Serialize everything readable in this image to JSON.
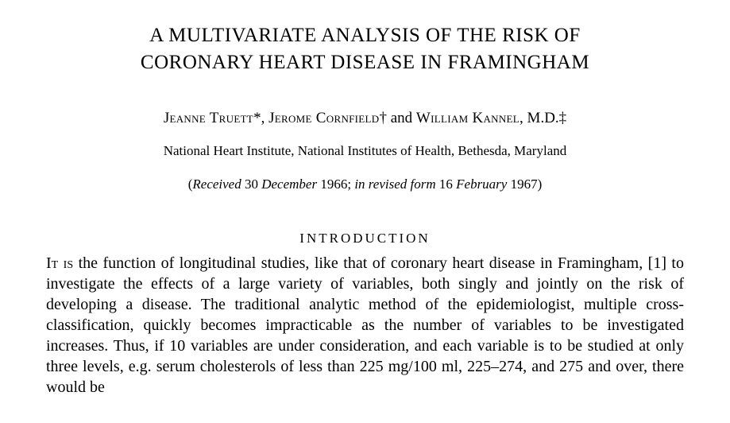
{
  "title_line1": "A MULTIVARIATE ANALYSIS OF THE RISK OF",
  "title_line2": "CORONARY HEART DISEASE IN FRAMINGHAM",
  "authors": {
    "a1_name": "Jeanne Truett",
    "a1_mark": "*",
    "sep1": ", ",
    "a2_name": "Jerome Cornfield",
    "a2_mark": "†",
    "sep2": " and ",
    "a3_name": "William Kannel",
    "a3_suffix": ", M.D.",
    "a3_mark": "‡"
  },
  "affiliation": "National Heart Institute, National Institutes of Health, Bethesda, Maryland",
  "dates": {
    "open": "(",
    "received_label": "Received",
    "received_date": " 30 ",
    "received_month": "December",
    "received_year": " 1966; ",
    "revised_label": "in revised form",
    "revised_date": " 16 ",
    "revised_month": "February",
    "revised_year": " 1967",
    "close": ")"
  },
  "section_heading": "INTRODUCTION",
  "body": {
    "lead": "It is",
    "text": " the function of longitudinal studies, like that of coronary heart disease in Framingham, [1] to investigate the effects of a large variety of variables, both singly and jointly on the risk of developing a disease. The traditional analytic method of the epidemiologist, multiple cross-classification, quickly becomes impracticable as the number of variables to be investigated increases. Thus, if 10 variables are under consideration, and each variable is to be studied at only three levels, e.g. serum cholesterols of less than 225 mg/100 ml, 225–274, and 275 and over, there would be"
  },
  "colors": {
    "background": "#ffffff",
    "text": "#000000"
  },
  "typography": {
    "title_fontsize": 25,
    "authors_fontsize": 19,
    "affiliation_fontsize": 17,
    "dates_fontsize": 17,
    "heading_fontsize": 17,
    "body_fontsize": 20,
    "font_family": "Times New Roman"
  }
}
